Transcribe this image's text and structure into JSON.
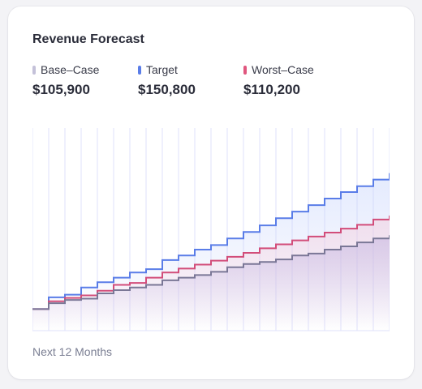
{
  "chart_data": {
    "type": "line",
    "step": true,
    "title": "Revenue Forecast",
    "xlabel": "Next 12 Months",
    "x": [
      0,
      1,
      2,
      3,
      4,
      5,
      6,
      7,
      8,
      9,
      10,
      11,
      12,
      13,
      14,
      15,
      16,
      17,
      18,
      19,
      20,
      21,
      22
    ],
    "ylim": [
      0,
      300
    ],
    "grid": true,
    "series": [
      {
        "name": "Base–Case",
        "legend_value": "$105,900",
        "color": "#7a7796",
        "swatch": "#c4c1d9",
        "fill": "#b9a9dc",
        "values": [
          33,
          42,
          47,
          49,
          57,
          62,
          66,
          70,
          77,
          81,
          85,
          90,
          97,
          102,
          105,
          109,
          115,
          118,
          124,
          129,
          135,
          141,
          146
        ]
      },
      {
        "name": "Target",
        "legend_value": "$150,800",
        "color": "#5a7de8",
        "swatch": "#5a7de8",
        "fill": "#c3d1fb",
        "values": [
          33,
          51,
          55,
          66,
          74,
          81,
          89,
          94,
          108,
          115,
          124,
          131,
          141,
          151,
          161,
          172,
          182,
          192,
          202,
          212,
          221,
          231,
          241
        ]
      },
      {
        "name": "Worst–Case",
        "legend_value": "$110,200",
        "color": "#d24d7a",
        "swatch": "#e0567e",
        "fill": "#f5c6d7",
        "values": [
          33,
          45,
          50,
          54,
          61,
          70,
          73,
          81,
          89,
          95,
          101,
          107,
          113,
          119,
          126,
          132,
          138,
          144,
          150,
          156,
          162,
          170,
          176
        ]
      }
    ]
  }
}
